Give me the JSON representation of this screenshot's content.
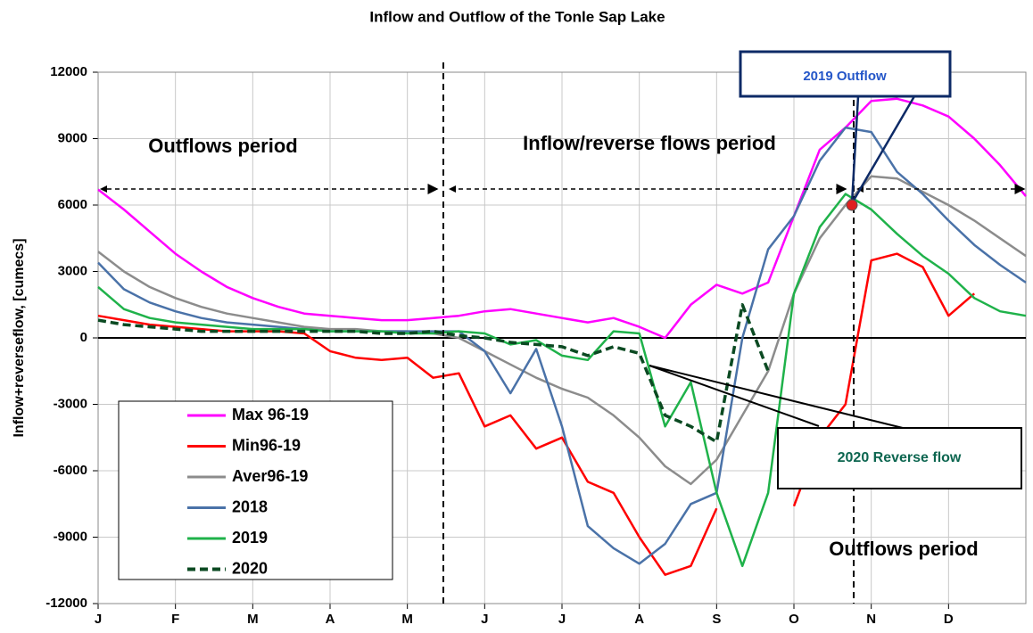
{
  "chart_data": {
    "type": "line",
    "title": "Inflow and Outflow of the Tonle Sap Lake",
    "y_label": "Inflow+reverseflow, [cumecs]",
    "categories": [
      "J",
      null,
      null,
      "F",
      null,
      null,
      "M",
      null,
      null,
      "A",
      null,
      null,
      "M",
      null,
      null,
      "J",
      null,
      null,
      "J",
      null,
      null,
      "A",
      null,
      null,
      "S",
      null,
      null,
      "O",
      null,
      null,
      "N",
      null,
      null,
      "D",
      null,
      null,
      null
    ],
    "ylim": [
      -12000,
      12000
    ],
    "yticks": [
      -12000,
      -9000,
      -6000,
      -3000,
      0,
      3000,
      6000,
      9000,
      12000
    ],
    "grid": true,
    "legend": "lower left",
    "annotations": [
      "Outflows period",
      "Inflow/reverse flows period",
      "Outflows period",
      "2019 Outflow",
      "2020 Reverse flow"
    ],
    "series": [
      {
        "name": "Max 96-19",
        "color": "#ff00ff",
        "style": "solid",
        "values": [
          6700,
          5800,
          4800,
          3800,
          3000,
          2300,
          1800,
          1400,
          1100,
          1000,
          900,
          800,
          800,
          900,
          1000,
          1200,
          1300,
          1100,
          900,
          700,
          900,
          500,
          0,
          1500,
          2400,
          2000,
          2500,
          5500,
          8500,
          9500,
          10700,
          10800,
          10500,
          10000,
          9000,
          7800,
          6400
        ]
      },
      {
        "name": "Min96-19",
        "color": "#ff0000",
        "style": "solid",
        "values": [
          1000,
          800,
          600,
          500,
          400,
          300,
          300,
          300,
          200,
          -600,
          -900,
          -1000,
          -900,
          -1800,
          -1600,
          -4000,
          -3500,
          -5000,
          -4500,
          -6500,
          -7000,
          -9000,
          -10700,
          -10300,
          -7700,
          null,
          null,
          -7600,
          -4500,
          -3000,
          3500,
          3800,
          3200,
          1000,
          2000,
          null,
          null
        ]
      },
      {
        "name": "Aver96-19",
        "color": "#8c8c8c",
        "style": "solid",
        "values": [
          3900,
          3000,
          2300,
          1800,
          1400,
          1100,
          900,
          700,
          500,
          400,
          400,
          300,
          300,
          200,
          0,
          -600,
          -1200,
          -1800,
          -2300,
          -2700,
          -3500,
          -4500,
          -5800,
          -6600,
          -5500,
          -3500,
          -1500,
          2000,
          4500,
          6000,
          7300,
          7200,
          6600,
          6000,
          5300,
          4500,
          3700
        ]
      },
      {
        "name": "2018",
        "color": "#4a72a8",
        "style": "solid",
        "values": [
          3400,
          2200,
          1600,
          1200,
          900,
          700,
          600,
          500,
          400,
          300,
          300,
          300,
          300,
          300,
          300,
          -600,
          -2500,
          -500,
          -4000,
          -8500,
          -9500,
          -10200,
          -9300,
          -7500,
          -7000,
          0,
          4000,
          5500,
          8000,
          9500,
          9300,
          7500,
          6500,
          5300,
          4200,
          3300,
          2500
        ]
      },
      {
        "name": "2019",
        "color": "#1fb24a",
        "style": "solid",
        "values": [
          2300,
          1300,
          900,
          700,
          600,
          500,
          400,
          400,
          400,
          300,
          300,
          300,
          200,
          200,
          300,
          200,
          -300,
          -100,
          -800,
          -1000,
          300,
          200,
          -4000,
          -2000,
          -7000,
          -10300,
          -7000,
          2000,
          5000,
          6500,
          5800,
          4700,
          3700,
          2900,
          1800,
          1200,
          1000
        ]
      },
      {
        "name": "2020",
        "color": "#0b4a22",
        "style": "dashed",
        "values": [
          800,
          600,
          500,
          400,
          300,
          300,
          300,
          300,
          300,
          300,
          300,
          200,
          200,
          300,
          100,
          0,
          -200,
          -300,
          -400,
          -800,
          -400,
          -700,
          -3500,
          -4000,
          -4700,
          1500,
          -1500,
          null,
          null,
          null,
          null,
          null,
          null,
          null,
          null,
          null,
          null
        ]
      }
    ]
  }
}
